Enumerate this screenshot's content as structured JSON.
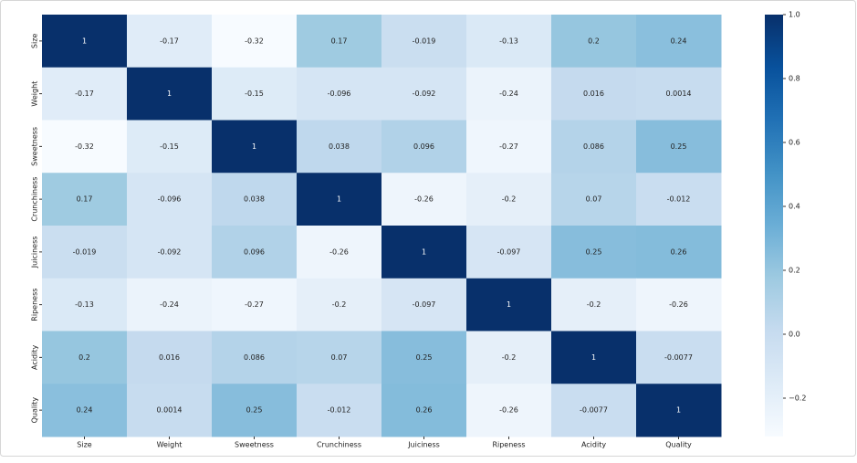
{
  "chart_data": {
    "type": "heatmap",
    "x_categories": [
      "Size",
      "Weight",
      "Sweetness",
      "Crunchiness",
      "Juiciness",
      "Ripeness",
      "Acidity",
      "Quality"
    ],
    "y_categories": [
      "Size",
      "Weight",
      "Sweetness",
      "Crunchiness",
      "Juiciness",
      "Ripeness",
      "Acidity",
      "Quality"
    ],
    "values": [
      [
        1,
        -0.17,
        -0.32,
        0.17,
        -0.019,
        -0.13,
        0.2,
        0.24
      ],
      [
        -0.17,
        1,
        -0.15,
        -0.096,
        -0.092,
        -0.24,
        0.016,
        0.0014
      ],
      [
        -0.32,
        -0.15,
        1,
        0.038,
        0.096,
        -0.27,
        0.086,
        0.25
      ],
      [
        0.17,
        -0.096,
        0.038,
        1,
        -0.26,
        -0.2,
        0.07,
        -0.012
      ],
      [
        -0.019,
        -0.092,
        0.096,
        -0.26,
        1,
        -0.097,
        0.25,
        0.26
      ],
      [
        -0.13,
        -0.24,
        -0.27,
        -0.2,
        -0.097,
        1,
        -0.2,
        -0.26
      ],
      [
        0.2,
        0.016,
        0.086,
        0.07,
        0.25,
        -0.2,
        1,
        -0.0077
      ],
      [
        0.24,
        0.0014,
        0.25,
        -0.012,
        0.26,
        -0.26,
        -0.0077,
        1
      ]
    ],
    "colormap": [
      "#f7fbff",
      "#deebf7",
      "#c6dbef",
      "#9ecae1",
      "#6baed6",
      "#4292c6",
      "#2171b5",
      "#08519c",
      "#08306b"
    ],
    "clim": [
      -0.32,
      1
    ],
    "cticks": [
      {
        "value": 1,
        "label": "1.0"
      },
      0.8,
      0.6,
      0.4,
      0.2,
      {
        "value": 0,
        "label": "0.0"
      },
      {
        "value": -0.2,
        "label": "−0.2"
      }
    ]
  }
}
